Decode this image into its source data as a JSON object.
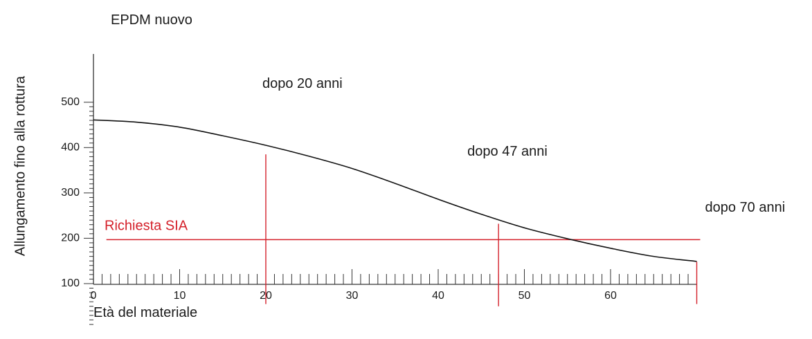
{
  "chart_data": {
    "type": "line",
    "title": "EPDM nuovo",
    "xlabel": "Età del materiale",
    "ylabel": "Allungamento fino alla rottura",
    "xlim": [
      0,
      70
    ],
    "ylim": [
      0,
      500
    ],
    "x_ticks": [
      "0",
      "10",
      "20",
      "30",
      "40",
      "50",
      "60"
    ],
    "y_ticks": [
      "100",
      "200",
      "300",
      "400",
      "500"
    ],
    "series": [
      {
        "x": [
          0,
          5,
          10,
          15,
          20,
          25,
          30,
          35,
          40,
          45,
          50,
          55,
          60,
          65,
          70
        ],
        "y": [
          461,
          456,
          445,
          426,
          405,
          381,
          354,
          321,
          286,
          253,
          223,
          199,
          178,
          160,
          149
        ]
      }
    ],
    "reference_line": {
      "label": "Richiesta SIA",
      "y": 197,
      "x_range": [
        1.5,
        70
      ],
      "color": "#d4202a"
    },
    "markers": [
      {
        "x": 20,
        "y_top": 385,
        "y_bottom": 55,
        "label": "dopo 20 anni"
      },
      {
        "x": 47,
        "y_top": 232,
        "y_bottom": 50,
        "label": "dopo 47 anni"
      },
      {
        "x": 70,
        "y_top": 148,
        "y_bottom": 55,
        "label": "dopo 70 anni"
      }
    ],
    "grid": false,
    "legend": "none",
    "colors": {
      "curve": "#111111",
      "reference": "#d4202a",
      "axis": "#333333"
    }
  }
}
